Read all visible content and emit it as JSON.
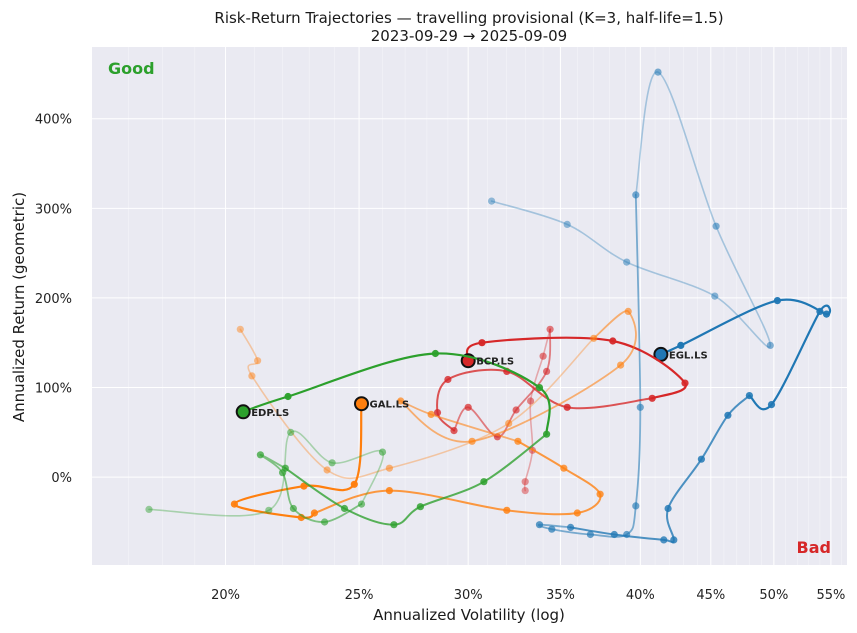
{
  "chart_data": {
    "type": "line",
    "title": "Risk-Return Trajectories — travelling provisional (K=3, half-life=1.5)",
    "subtitle": "2023-09-29 → 2025-09-09",
    "xlabel": "Annualized Volatility (log)",
    "ylabel": "Annualized Return (geometric)",
    "x_scale": "log",
    "xlim": [
      0.16,
      0.565
    ],
    "ylim": [
      -0.98,
      4.8
    ],
    "x_ticks": [
      0.2,
      0.25,
      0.3,
      0.35,
      0.4,
      0.45,
      0.5,
      0.55
    ],
    "x_tick_labels": [
      "20%",
      "25%",
      "30%",
      "35%",
      "40%",
      "45%",
      "50%",
      "55%"
    ],
    "y_ticks": [
      0,
      1,
      2,
      3,
      4
    ],
    "y_tick_labels": [
      "0%",
      "100%",
      "200%",
      "300%",
      "400%"
    ],
    "grid": true,
    "corner_labels": {
      "top_left": "Good",
      "bottom_right": "Bad"
    },
    "series": [
      {
        "name": "EGL.LS",
        "color": "#1f77b4",
        "points": [
          [
            0.312,
            3.08
          ],
          [
            0.354,
            2.82
          ],
          [
            0.391,
            2.4
          ],
          [
            0.453,
            2.02
          ],
          [
            0.497,
            1.47
          ],
          [
            0.454,
            2.8
          ],
          [
            0.412,
            4.52
          ],
          [
            0.397,
            3.15
          ],
          [
            0.4,
            0.78
          ],
          [
            0.397,
            -0.32
          ],
          [
            0.391,
            -0.64
          ],
          [
            0.368,
            -0.64
          ],
          [
            0.345,
            -0.58
          ],
          [
            0.338,
            -0.53
          ],
          [
            0.356,
            -0.56
          ],
          [
            0.383,
            -0.64
          ],
          [
            0.416,
            -0.7
          ],
          [
            0.423,
            -0.7
          ],
          [
            0.419,
            -0.35
          ],
          [
            0.443,
            0.2
          ],
          [
            0.463,
            0.69
          ],
          [
            0.48,
            0.91
          ],
          [
            0.498,
            0.81
          ],
          [
            0.54,
            1.85
          ],
          [
            0.546,
            1.82
          ],
          [
            0.503,
            1.97
          ],
          [
            0.428,
            1.47
          ],
          [
            0.414,
            1.37
          ]
        ]
      },
      {
        "name": "BCP.LS",
        "color": "#d62728",
        "points": [
          [
            0.33,
            -0.15
          ],
          [
            0.33,
            -0.05
          ],
          [
            0.334,
            0.3
          ],
          [
            0.333,
            0.85
          ],
          [
            0.34,
            1.35
          ],
          [
            0.344,
            1.65
          ],
          [
            0.342,
            1.18
          ],
          [
            0.325,
            0.75
          ],
          [
            0.315,
            0.45
          ],
          [
            0.3,
            0.78
          ],
          [
            0.293,
            0.52
          ],
          [
            0.285,
            0.72
          ],
          [
            0.29,
            1.09
          ],
          [
            0.32,
            1.18
          ],
          [
            0.354,
            0.78
          ],
          [
            0.408,
            0.88
          ],
          [
            0.431,
            1.05
          ],
          [
            0.382,
            1.52
          ],
          [
            0.307,
            1.5
          ],
          [
            0.3,
            1.3
          ]
        ]
      },
      {
        "name": "GAL.LS",
        "color": "#ff7f0e",
        "points": [
          [
            0.205,
            1.65
          ],
          [
            0.211,
            1.3
          ],
          [
            0.209,
            1.13
          ],
          [
            0.237,
            0.08
          ],
          [
            0.263,
            0.1
          ],
          [
            0.321,
            0.6
          ],
          [
            0.37,
            1.55
          ],
          [
            0.392,
            1.85
          ],
          [
            0.387,
            1.25
          ],
          [
            0.302,
            0.4
          ],
          [
            0.268,
            0.85
          ],
          [
            0.282,
            0.7
          ],
          [
            0.326,
            0.4
          ],
          [
            0.352,
            0.1
          ],
          [
            0.374,
            -0.19
          ],
          [
            0.36,
            -0.4
          ],
          [
            0.32,
            -0.37
          ],
          [
            0.263,
            -0.15
          ],
          [
            0.232,
            -0.4
          ],
          [
            0.227,
            -0.45
          ],
          [
            0.203,
            -0.3
          ],
          [
            0.228,
            -0.1
          ],
          [
            0.248,
            -0.08
          ],
          [
            0.251,
            0.82
          ]
        ]
      },
      {
        "name": "EDP.LS",
        "color": "#2ca02c",
        "points": [
          [
            0.176,
            -0.36
          ],
          [
            0.215,
            -0.37
          ],
          [
            0.223,
            0.5
          ],
          [
            0.239,
            0.16
          ],
          [
            0.26,
            0.28
          ],
          [
            0.251,
            -0.3
          ],
          [
            0.236,
            -0.5
          ],
          [
            0.224,
            -0.35
          ],
          [
            0.22,
            0.05
          ],
          [
            0.212,
            0.25
          ],
          [
            0.221,
            0.1
          ],
          [
            0.244,
            -0.35
          ],
          [
            0.265,
            -0.53
          ],
          [
            0.277,
            -0.33
          ],
          [
            0.308,
            -0.05
          ],
          [
            0.342,
            0.48
          ],
          [
            0.338,
            1.0
          ],
          [
            0.284,
            1.38
          ],
          [
            0.222,
            0.9
          ],
          [
            0.206,
            0.73
          ]
        ]
      }
    ]
  }
}
